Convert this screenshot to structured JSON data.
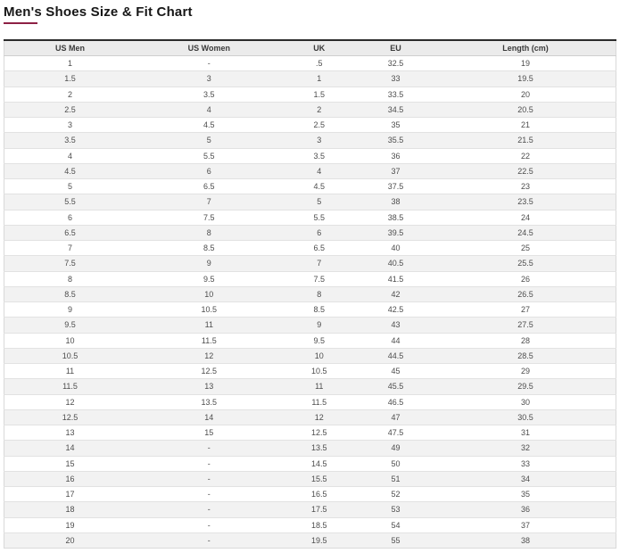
{
  "page": {
    "title": "Men's Shoes Size & Fit Chart",
    "accent_color": "#8d2044"
  },
  "table": {
    "columns": [
      "US Men",
      "US Women",
      "UK",
      "EU",
      "Length (cm)"
    ],
    "rows": [
      [
        "1",
        "-",
        ".5",
        "32.5",
        "19"
      ],
      [
        "1.5",
        "3",
        "1",
        "33",
        "19.5"
      ],
      [
        "2",
        "3.5",
        "1.5",
        "33.5",
        "20"
      ],
      [
        "2.5",
        "4",
        "2",
        "34.5",
        "20.5"
      ],
      [
        "3",
        "4.5",
        "2.5",
        "35",
        "21"
      ],
      [
        "3.5",
        "5",
        "3",
        "35.5",
        "21.5"
      ],
      [
        "4",
        "5.5",
        "3.5",
        "36",
        "22"
      ],
      [
        "4.5",
        "6",
        "4",
        "37",
        "22.5"
      ],
      [
        "5",
        "6.5",
        "4.5",
        "37.5",
        "23"
      ],
      [
        "5.5",
        "7",
        "5",
        "38",
        "23.5"
      ],
      [
        "6",
        "7.5",
        "5.5",
        "38.5",
        "24"
      ],
      [
        "6.5",
        "8",
        "6",
        "39.5",
        "24.5"
      ],
      [
        "7",
        "8.5",
        "6.5",
        "40",
        "25"
      ],
      [
        "7.5",
        "9",
        "7",
        "40.5",
        "25.5"
      ],
      [
        "8",
        "9.5",
        "7.5",
        "41.5",
        "26"
      ],
      [
        "8.5",
        "10",
        "8",
        "42",
        "26.5"
      ],
      [
        "9",
        "10.5",
        "8.5",
        "42.5",
        "27"
      ],
      [
        "9.5",
        "11",
        "9",
        "43",
        "27.5"
      ],
      [
        "10",
        "11.5",
        "9.5",
        "44",
        "28"
      ],
      [
        "10.5",
        "12",
        "10",
        "44.5",
        "28.5"
      ],
      [
        "11",
        "12.5",
        "10.5",
        "45",
        "29"
      ],
      [
        "11.5",
        "13",
        "11",
        "45.5",
        "29.5"
      ],
      [
        "12",
        "13.5",
        "11.5",
        "46.5",
        "30"
      ],
      [
        "12.5",
        "14",
        "12",
        "47",
        "30.5"
      ],
      [
        "13",
        "15",
        "12.5",
        "47.5",
        "31"
      ],
      [
        "14",
        "-",
        "13.5",
        "49",
        "32"
      ],
      [
        "15",
        "-",
        "14.5",
        "50",
        "33"
      ],
      [
        "16",
        "-",
        "15.5",
        "51",
        "34"
      ],
      [
        "17",
        "-",
        "16.5",
        "52",
        "35"
      ],
      [
        "18",
        "-",
        "17.5",
        "53",
        "36"
      ],
      [
        "19",
        "-",
        "18.5",
        "54",
        "37"
      ],
      [
        "20",
        "-",
        "19.5",
        "55",
        "38"
      ]
    ]
  }
}
